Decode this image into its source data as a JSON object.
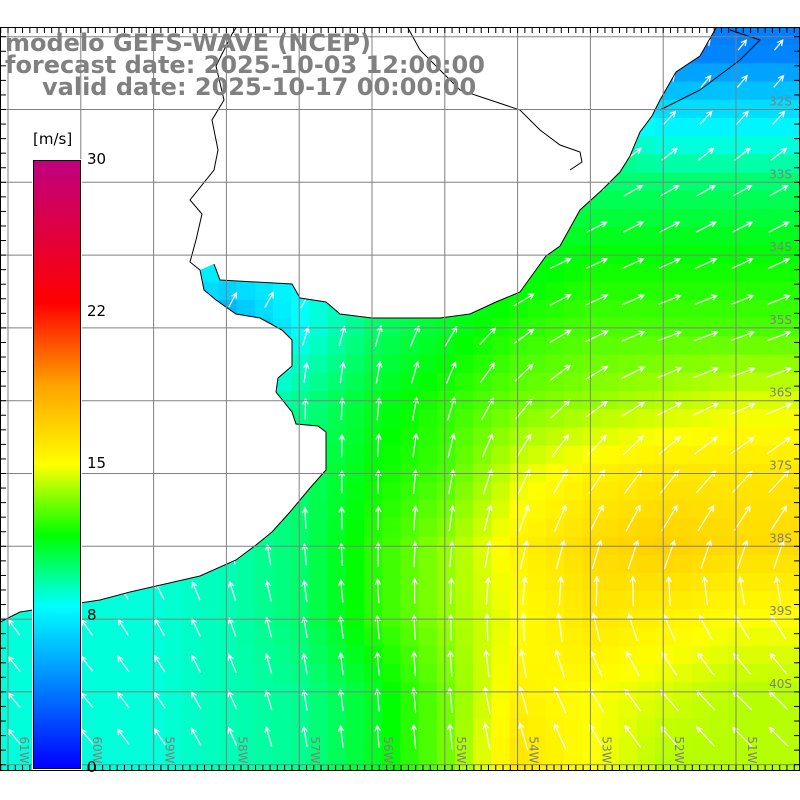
{
  "title": {
    "line1": "modelo GEFS-WAVE (NCEP)",
    "line2": "forecast date: 2025-10-03 12:00:00",
    "line3": "valid date: 2025-10-17 00:00:00"
  },
  "colorbar": {
    "unit": "[m/s]",
    "labels": [
      "30",
      "22",
      "15",
      "8",
      "0"
    ],
    "label_values": [
      30,
      22,
      15,
      8,
      0
    ],
    "range": [
      0,
      30
    ],
    "stops": [
      {
        "v": 0,
        "c": "#0000ff"
      },
      {
        "v": 4,
        "c": "#0080ff"
      },
      {
        "v": 8,
        "c": "#00ffff"
      },
      {
        "v": 11.5,
        "c": "#00ff00"
      },
      {
        "v": 15,
        "c": "#ffff00"
      },
      {
        "v": 19,
        "c": "#ffa000"
      },
      {
        "v": 23,
        "c": "#ff0000"
      },
      {
        "v": 30,
        "c": "#c0007f"
      }
    ]
  },
  "axes": {
    "lon_labels": [
      "61W",
      "60W",
      "59W",
      "58W",
      "57W",
      "56W",
      "55W",
      "54W",
      "53W",
      "52W",
      "51W"
    ],
    "lat_labels": [
      "32S",
      "33S",
      "34S",
      "35S",
      "36S",
      "37S",
      "38S",
      "39S",
      "40S"
    ],
    "lon_range": [
      -61.1,
      -50.2
    ],
    "lat_range": [
      -31.0,
      -41.2
    ]
  },
  "wind_field": {
    "units": "m/s",
    "lons": [
      -61,
      -60,
      -59,
      -58,
      -57,
      -56,
      -55,
      -54,
      -53,
      -52,
      -51
    ],
    "lats": [
      -31.2,
      -32,
      -33,
      -34,
      -35,
      -36,
      -37,
      -38,
      -39,
      -40,
      -40.8
    ],
    "speed": [
      [
        8,
        8,
        8,
        8,
        8,
        8,
        8,
        8,
        6,
        4,
        4
      ],
      [
        8,
        8,
        8,
        8,
        8,
        8,
        9,
        9,
        9,
        7,
        7
      ],
      [
        8,
        8,
        8,
        8,
        8,
        9,
        10,
        10,
        10,
        10,
        10
      ],
      [
        8,
        8,
        8,
        8,
        8,
        9,
        10.5,
        11,
        11.5,
        11.5,
        11.5
      ],
      [
        8,
        8,
        8,
        5,
        8,
        10,
        11,
        12,
        12.5,
        12.5,
        12.5
      ],
      [
        8,
        8,
        8,
        8,
        9.5,
        11,
        12,
        13,
        13.5,
        14,
        14.5
      ],
      [
        8.5,
        8.5,
        8.5,
        9,
        10,
        11.5,
        12.5,
        14.5,
        15.5,
        16,
        16
      ],
      [
        8.5,
        8.5,
        8.5,
        9,
        10,
        12,
        13.5,
        15.5,
        16.5,
        17,
        16.5
      ],
      [
        8.5,
        8.5,
        8.5,
        9,
        10,
        12,
        13.5,
        15,
        16,
        15.5,
        15
      ],
      [
        8.5,
        8.5,
        8.5,
        9,
        9.5,
        11,
        13,
        15.5,
        15,
        14.5,
        14
      ],
      [
        8.5,
        8.5,
        8.5,
        9,
        9.5,
        11,
        13,
        16,
        15,
        14,
        14
      ]
    ],
    "direction_toward_deg": [
      [
        40,
        40,
        40,
        40,
        40,
        45,
        45,
        45,
        45,
        40,
        40
      ],
      [
        40,
        40,
        40,
        40,
        40,
        45,
        50,
        50,
        45,
        40,
        40
      ],
      [
        40,
        40,
        40,
        40,
        45,
        50,
        55,
        60,
        60,
        60,
        60
      ],
      [
        40,
        40,
        40,
        40,
        45,
        50,
        60,
        65,
        65,
        65,
        65
      ],
      [
        20,
        20,
        20,
        20,
        20,
        15,
        30,
        55,
        65,
        70,
        70
      ],
      [
        0,
        0,
        0,
        0,
        0,
        5,
        15,
        40,
        55,
        65,
        70
      ],
      [
        -20,
        -20,
        -15,
        -10,
        0,
        0,
        10,
        25,
        35,
        40,
        45
      ],
      [
        -30,
        -30,
        -25,
        -15,
        -5,
        0,
        5,
        15,
        20,
        25,
        25
      ],
      [
        -35,
        -35,
        -30,
        -20,
        -10,
        -5,
        0,
        0,
        -10,
        -20,
        -30
      ],
      [
        -40,
        -40,
        -35,
        -25,
        -10,
        -5,
        -5,
        -15,
        -30,
        -40,
        -45
      ],
      [
        -40,
        -40,
        -35,
        -25,
        -10,
        -5,
        -5,
        -15,
        -30,
        -40,
        -45
      ]
    ]
  }
}
